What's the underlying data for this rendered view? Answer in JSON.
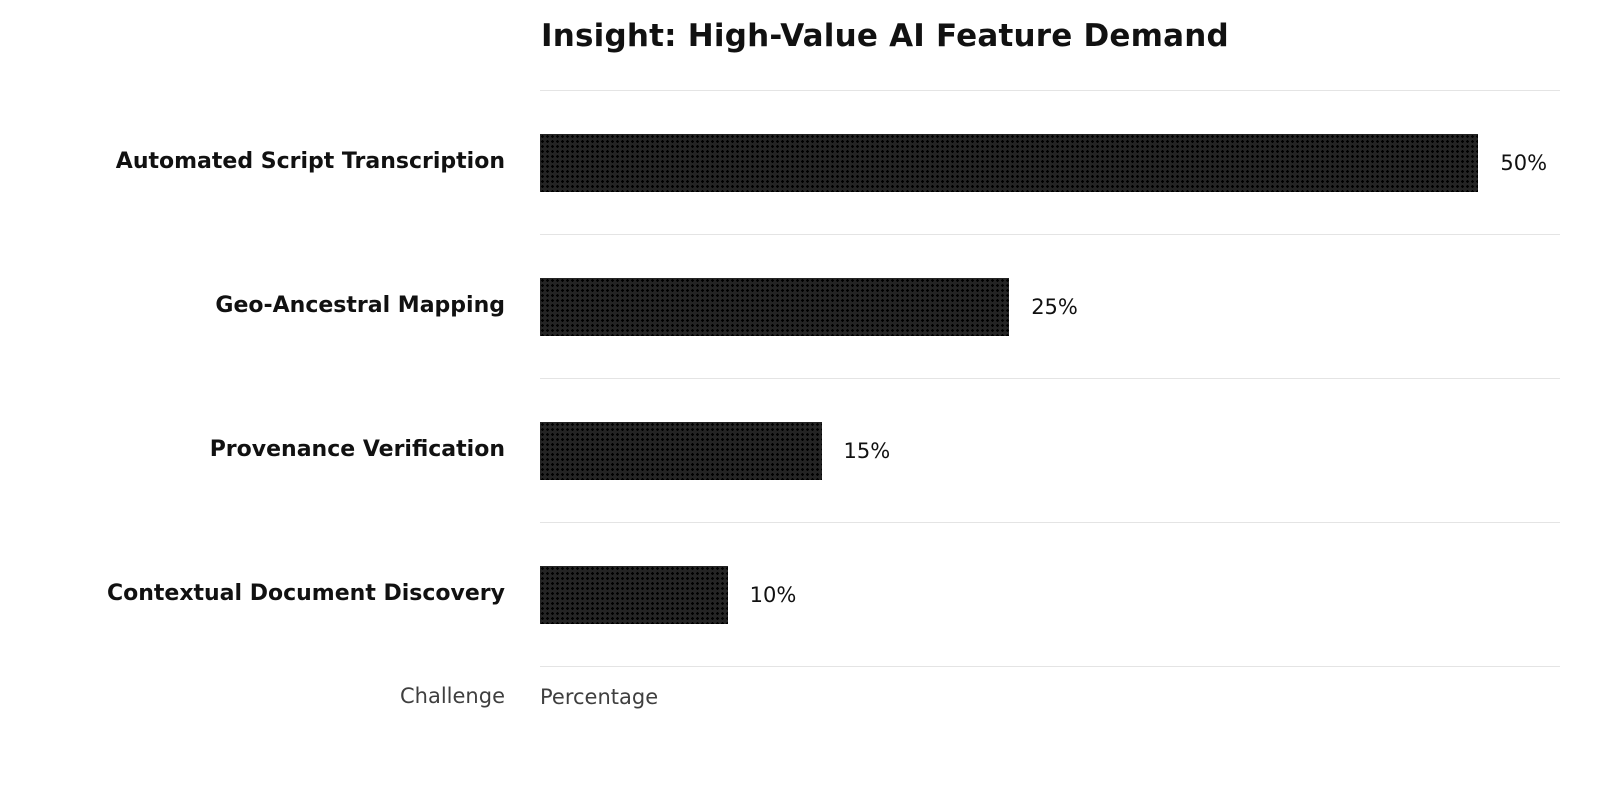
{
  "chart_data": {
    "type": "bar",
    "orientation": "horizontal",
    "title": "Insight: High-Value AI Feature Demand",
    "categories": [
      "Automated Script Transcription",
      "Geo-Ancestral Mapping",
      "Provenance Verification",
      "Contextual Document Discovery"
    ],
    "values": [
      50,
      25,
      15,
      10
    ],
    "value_labels": [
      "50%",
      "25%",
      "15%",
      "10%"
    ],
    "category_axis_label": "Challenge",
    "xlabel": "Percentage",
    "xlim": [
      0,
      50
    ],
    "grid": true,
    "legend": "none",
    "bar_color": "#242424",
    "bar_pattern": "dotted-hatch",
    "gridline_color": "#e4e4e4",
    "background_color": "#ffffff"
  }
}
